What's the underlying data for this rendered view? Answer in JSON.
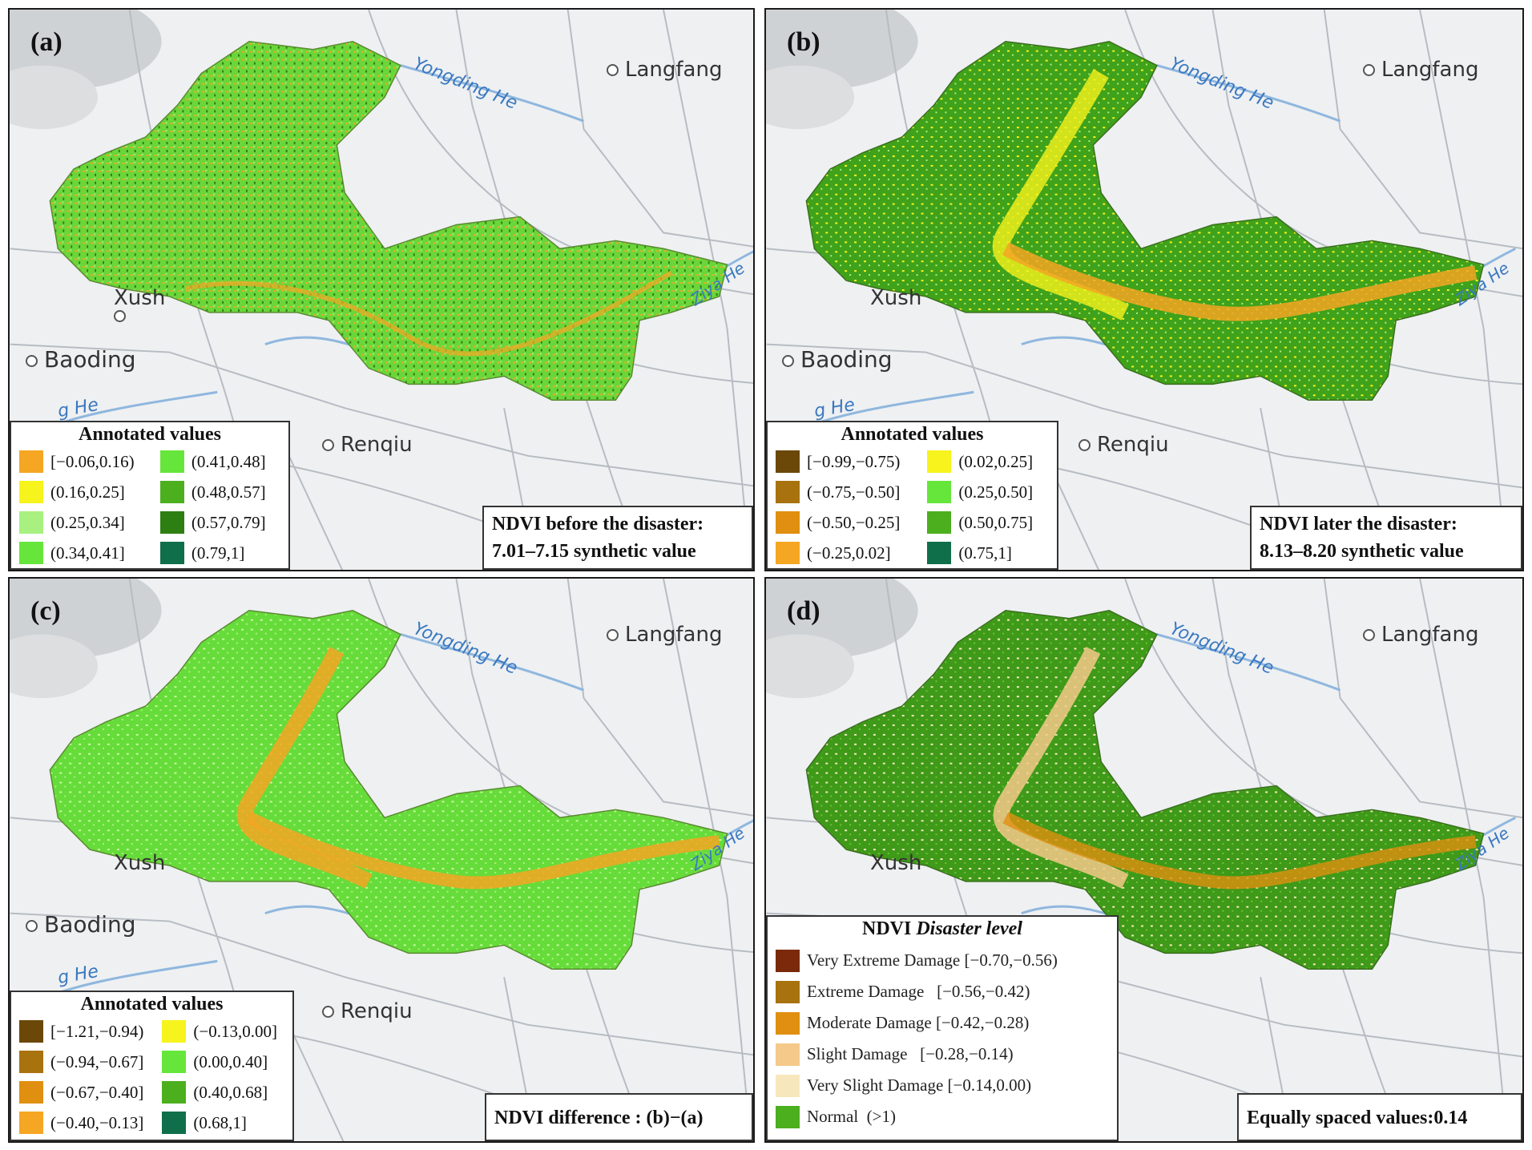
{
  "colors": {
    "orange": "#f5a623",
    "yellow": "#f7f31c",
    "light_green": "#a8f080",
    "bright_green": "#66e63a",
    "green": "#4caf1e",
    "dark_green": "#2d7f12",
    "teal": "#0f6f4a",
    "dark_brown": "#6b4708",
    "brown": "#a8720e",
    "dark_orange": "#e08f10",
    "maroon": "#7a2a0a",
    "tan": "#f5c98a",
    "cream": "#f7e7bd"
  },
  "places": {
    "langfang": "Langfang",
    "xush": "Xush",
    "baoding": "Baoding",
    "renqiu": "Renqiu",
    "yongding": "Yongding He",
    "ziya": "Ziya He",
    "he": "g He"
  },
  "panels": [
    {
      "label": "(a)",
      "legend_title": "Annotated values",
      "legend": [
        {
          "text": "[−0.06,0.16)",
          "color": "#f5a623"
        },
        {
          "text": "(0.41,0.48]",
          "color": "#66e63a"
        },
        {
          "text": "(0.16,0.25]",
          "color": "#f7f31c"
        },
        {
          "text": "(0.48,0.57]",
          "color": "#4caf1e"
        },
        {
          "text": "(0.25,0.34]",
          "color": "#a8f080"
        },
        {
          "text": "(0.57,0.79]",
          "color": "#2d7f12"
        },
        {
          "text": "(0.34,0.41]",
          "color": "#66e63a"
        },
        {
          "text": "(0.79,1]",
          "color": "#0f6f4a"
        }
      ],
      "note_line1": "NDVI before the disaster:",
      "note_line2": "7.01–7.15 synthetic value"
    },
    {
      "label": "(b)",
      "legend_title": "Annotated values",
      "legend": [
        {
          "text": "[−0.99,−0.75)",
          "color": "#6b4708"
        },
        {
          "text": "(0.02,0.25]",
          "color": "#f7f31c"
        },
        {
          "text": "(−0.75,−0.50]",
          "color": "#a8720e"
        },
        {
          "text": "(0.25,0.50]",
          "color": "#66e63a"
        },
        {
          "text": "(−0.50,−0.25]",
          "color": "#e08f10"
        },
        {
          "text": "(0.50,0.75]",
          "color": "#4caf1e"
        },
        {
          "text": "(−0.25,0.02]",
          "color": "#f5a623"
        },
        {
          "text": "(0.75,1]",
          "color": "#0f6f4a"
        }
      ],
      "note_line1": "NDVI later the disaster:",
      "note_line2": "8.13–8.20 synthetic value"
    },
    {
      "label": "(c)",
      "legend_title": "Annotated values",
      "legend": [
        {
          "text": "[−1.21,−0.94)",
          "color": "#6b4708"
        },
        {
          "text": "(−0.13,0.00]",
          "color": "#f7f31c"
        },
        {
          "text": "(−0.94,−0.67]",
          "color": "#a8720e"
        },
        {
          "text": "(0.00,0.40]",
          "color": "#66e63a"
        },
        {
          "text": "(−0.67,−0.40]",
          "color": "#e08f10"
        },
        {
          "text": "(0.40,0.68]",
          "color": "#4caf1e"
        },
        {
          "text": "(−0.40,−0.13]",
          "color": "#f5a623"
        },
        {
          "text": "(0.68,1]",
          "color": "#0f6f4a"
        }
      ],
      "note_line1": "NDVI difference : (b)−(a)"
    },
    {
      "label": "(d)",
      "legend_title_prefix": "NDVI ",
      "legend_title_italic": "Disaster level",
      "levels": [
        {
          "name": "Very Extreme Damage",
          "range": "[−0.70,−0.56)",
          "color": "#7a2a0a"
        },
        {
          "name": "Extreme Damage",
          "range": "[−0.56,−0.42)",
          "color": "#a8720e"
        },
        {
          "name": "Moderate Damage",
          "range": "[−0.42,−0.28)",
          "color": "#e08f10"
        },
        {
          "name": "Slight Damage",
          "range": "[−0.28,−0.14)",
          "color": "#f5c98a"
        },
        {
          "name": "Very Slight Damage",
          "range": "[−0.14,0.00)",
          "color": "#f7e7bd"
        },
        {
          "name": "Normal",
          "range": "(>1)",
          "color": "#4caf1e"
        }
      ],
      "note_line1": "Equally spaced values:0.14"
    }
  ]
}
